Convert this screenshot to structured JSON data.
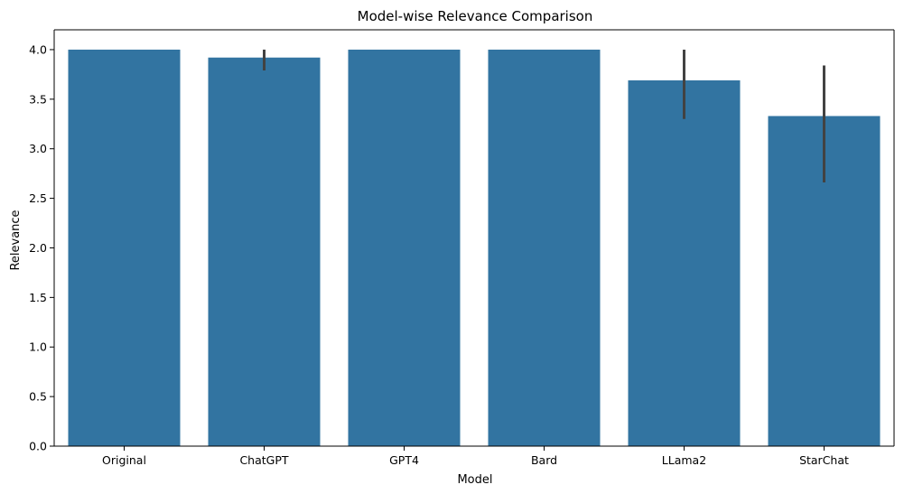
{
  "chart_data": {
    "type": "bar",
    "title": "Model-wise Relevance Comparison",
    "xlabel": "Model",
    "ylabel": "Relevance",
    "categories": [
      "Original",
      "ChatGPT",
      "GPT4",
      "Bard",
      "LLama2",
      "StarChat"
    ],
    "values": [
      4.0,
      3.92,
      4.0,
      4.0,
      3.69,
      3.33
    ],
    "error_bars": [
      null,
      [
        3.79,
        4.0
      ],
      null,
      null,
      [
        3.3,
        4.0
      ],
      [
        2.66,
        3.84
      ]
    ],
    "ylim": [
      0,
      4.2
    ],
    "yticks": [
      "0.0",
      "0.5",
      "1.0",
      "1.5",
      "2.0",
      "2.5",
      "3.0",
      "3.5",
      "4.0"
    ],
    "grid": false,
    "colors": {
      "bar": "#3274a1",
      "error_bar": "#424242",
      "axis": "#000000"
    }
  }
}
